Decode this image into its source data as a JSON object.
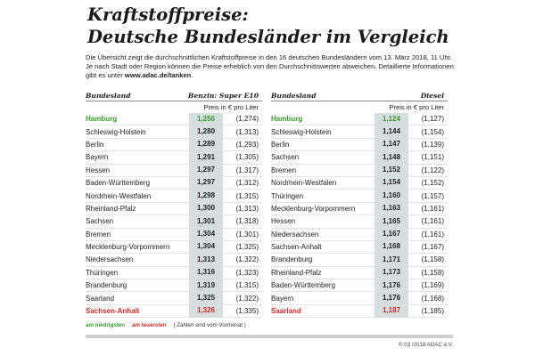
{
  "title_line1": "Kraftstoffpreise:",
  "title_line2": "Deutsche Bundesländer im Vergleich",
  "intro_text": "Die Übersicht zeigt die durchschnittlichen Kraftstoffpreise in den 16 deutschen Bundesländern vom 13. März 2018, 11 Uhr. Je nach Stadt oder Region können die Preise erheblich von den Durchschnittswerten abweichen. Detaillierte Informationen gibt es unter ",
  "intro_link": "www.adac.de/tanken",
  "intro_end": ".",
  "benzin": {
    "region_header": "Bundesland",
    "fuel_header": "Benzin: Super E10",
    "unit_header": "Preis in € pro Liter",
    "rows": [
      {
        "name": "Hamburg",
        "price": "1,256",
        "prev": "(1,274)",
        "mark": "low"
      },
      {
        "name": "Schleswig-Holstein",
        "price": "1,280",
        "prev": "(1,313)",
        "mark": ""
      },
      {
        "name": "Berlin",
        "price": "1,289",
        "prev": "(1,293)",
        "mark": ""
      },
      {
        "name": "Bayern",
        "price": "1,291",
        "prev": "(1,305)",
        "mark": ""
      },
      {
        "name": "Hessen",
        "price": "1,297",
        "prev": "(1,317)",
        "mark": ""
      },
      {
        "name": "Baden-Württemberg",
        "price": "1,297",
        "prev": "(1,312)",
        "mark": ""
      },
      {
        "name": "Nordrhein-Westfalen",
        "price": "1,298",
        "prev": "(1,315)",
        "mark": ""
      },
      {
        "name": "Rheinland-Pfalz",
        "price": "1,300",
        "prev": "(1,313)",
        "mark": ""
      },
      {
        "name": "Sachsen",
        "price": "1,301",
        "prev": "(1,318)",
        "mark": ""
      },
      {
        "name": "Bremen",
        "price": "1,304",
        "prev": "(1,301)",
        "mark": ""
      },
      {
        "name": "Mecklenburg-Vorpommern",
        "price": "1,304",
        "prev": "(1,325)",
        "mark": ""
      },
      {
        "name": "Niedersachsen",
        "price": "1,313",
        "prev": "(1,322)",
        "mark": ""
      },
      {
        "name": "Thüringen",
        "price": "1,316",
        "prev": "(1,323)",
        "mark": ""
      },
      {
        "name": "Brandenburg",
        "price": "1,319",
        "prev": "(1,315)",
        "mark": ""
      },
      {
        "name": "Saarland",
        "price": "1,325",
        "prev": "(1,322)",
        "mark": ""
      },
      {
        "name": "Sachsen-Anhalt",
        "price": "1,326",
        "prev": "(1,335)",
        "mark": "high"
      }
    ]
  },
  "diesel": {
    "region_header": "Bundesland",
    "fuel_header": "Diesel",
    "unit_header": "Preis in € pro Liter",
    "rows": [
      {
        "name": "Hamburg",
        "price": "1,124",
        "prev": "(1,127)",
        "mark": "low"
      },
      {
        "name": "Schleswig-Holstein",
        "price": "1,144",
        "prev": "(1,154)",
        "mark": ""
      },
      {
        "name": "Berlin",
        "price": "1,147",
        "prev": "(1,139)",
        "mark": ""
      },
      {
        "name": "Sachsen",
        "price": "1,148",
        "prev": "(1,151)",
        "mark": ""
      },
      {
        "name": "Bremen",
        "price": "1,152",
        "prev": "(1,122)",
        "mark": ""
      },
      {
        "name": "Nordrhein-Westfalen",
        "price": "1,154",
        "prev": "(1,152)",
        "mark": ""
      },
      {
        "name": "Thüringen",
        "price": "1,160",
        "prev": "(1,157)",
        "mark": ""
      },
      {
        "name": "Mecklenburg-Vorpommern",
        "price": "1,163",
        "prev": "(1,161)",
        "mark": ""
      },
      {
        "name": "Hessen",
        "price": "1,165",
        "prev": "(1,161)",
        "mark": ""
      },
      {
        "name": "Niedersachsen",
        "price": "1,167",
        "prev": "(1,161)",
        "mark": ""
      },
      {
        "name": "Sachsen-Anhalt",
        "price": "1,168",
        "prev": "(1,167)",
        "mark": ""
      },
      {
        "name": "Brandenburg",
        "price": "1,171",
        "prev": "(1,158)",
        "mark": ""
      },
      {
        "name": "Rheinland-Pfalz",
        "price": "1,173",
        "prev": "(1,158)",
        "mark": ""
      },
      {
        "name": "Baden-Württemberg",
        "price": "1,176",
        "prev": "(1,169)",
        "mark": ""
      },
      {
        "name": "Bayern",
        "price": "1,176",
        "prev": "(1,168)",
        "mark": ""
      },
      {
        "name": "Saarland",
        "price": "1,187",
        "prev": "(1,185)",
        "mark": "high"
      }
    ]
  },
  "legend": {
    "lowest": "am niedrigsten",
    "highest": "am teuersten",
    "note": "( Zahlen sind vom Vormonat )"
  },
  "copyright": "© 03 /2018 ADAC e.V.",
  "colors": {
    "lowest": "#3a9a2e",
    "highest": "#d22a2a",
    "price_band": "#d6dee0"
  }
}
